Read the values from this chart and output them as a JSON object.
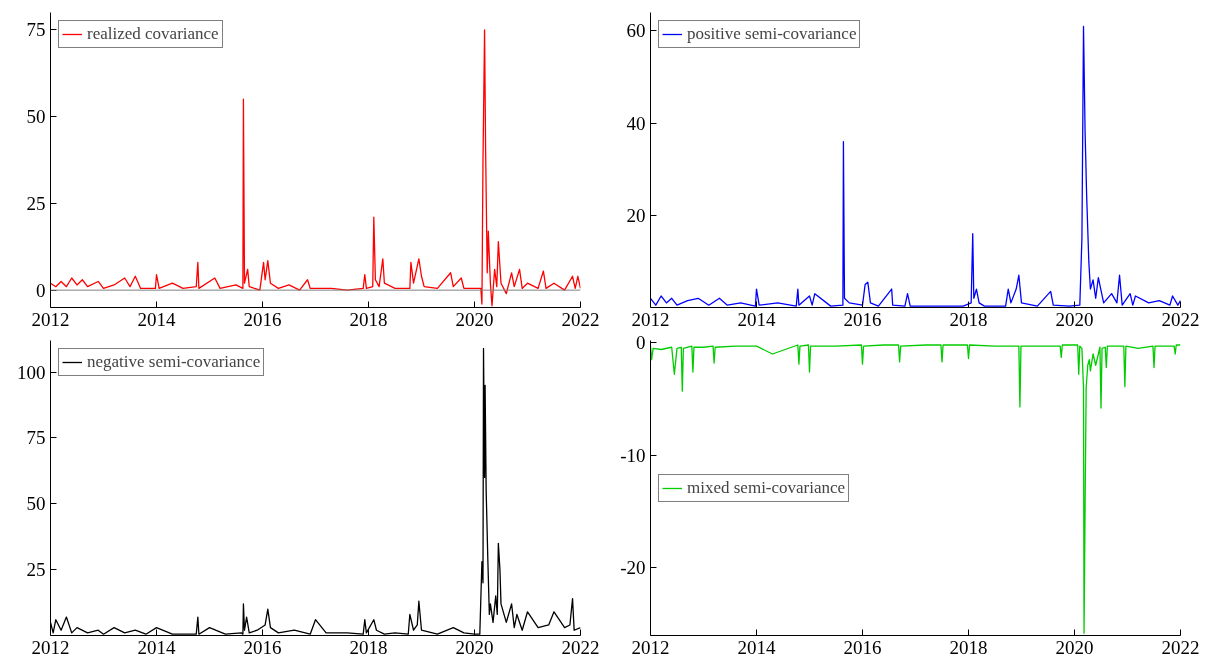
{
  "chart_data": [
    {
      "type": "line",
      "legend": "top left",
      "xlim": [
        2012,
        2022
      ],
      "xticks": [
        2012,
        2014,
        2016,
        2018,
        2020,
        2022
      ],
      "ylim": [
        -5,
        80
      ],
      "yticks": [
        0,
        25,
        50,
        75
      ],
      "ref_lines": [
        {
          "axis": "y",
          "value": 0,
          "color": "#808080"
        }
      ],
      "series": [
        {
          "name": "realized covariance",
          "color": "#ff0000",
          "x": [
            2012.0,
            2012.1,
            2012.2,
            2012.3,
            2012.4,
            2012.5,
            2012.6,
            2012.7,
            2012.9,
            2013.0,
            2013.2,
            2013.4,
            2013.5,
            2013.6,
            2013.7,
            2013.98,
            2014.0,
            2014.05,
            2014.3,
            2014.5,
            2014.75,
            2014.78,
            2014.8,
            2015.1,
            2015.2,
            2015.5,
            2015.63,
            2015.64,
            2015.66,
            2015.72,
            2015.75,
            2015.95,
            2016.02,
            2016.05,
            2016.1,
            2016.15,
            2016.3,
            2016.5,
            2016.7,
            2016.85,
            2016.9,
            2017.3,
            2017.6,
            2017.9,
            2017.93,
            2017.96,
            2018.08,
            2018.1,
            2018.13,
            2018.2,
            2018.27,
            2018.3,
            2018.5,
            2018.78,
            2018.8,
            2018.85,
            2018.95,
            2019.0,
            2019.05,
            2019.3,
            2019.55,
            2019.6,
            2019.75,
            2019.8,
            2020.0,
            2020.12,
            2020.14,
            2020.16,
            2020.19,
            2020.21,
            2020.24,
            2020.26,
            2020.3,
            2020.33,
            2020.38,
            2020.42,
            2020.45,
            2020.5,
            2020.6,
            2020.7,
            2020.75,
            2020.85,
            2020.9,
            2021.0,
            2021.2,
            2021.3,
            2021.35,
            2021.5,
            2021.7,
            2021.85,
            2021.9,
            2021.95,
            2022.0
          ],
          "values": [
            2,
            1,
            2.5,
            1,
            3.5,
            1.5,
            3,
            1,
            2.5,
            0.5,
            1.5,
            3.5,
            1,
            4,
            0.5,
            0.5,
            4.5,
            0.5,
            2,
            0.5,
            1,
            8,
            0.5,
            3.5,
            0.5,
            1.5,
            0.5,
            55,
            2,
            6,
            1,
            0,
            8,
            3,
            8.5,
            2,
            0.5,
            1.5,
            0,
            3,
            0.5,
            0.5,
            0,
            0.5,
            4.5,
            0.5,
            1,
            21,
            3,
            1,
            9,
            2,
            0.5,
            0.5,
            8,
            2,
            9,
            4,
            1,
            0.5,
            5,
            1,
            3.5,
            0.5,
            0.5,
            0.5,
            -4,
            37,
            75,
            40,
            5,
            17,
            2,
            -4.5,
            6,
            1,
            14,
            2,
            -1,
            5,
            1,
            6,
            0.5,
            2,
            0.5,
            5.5,
            0.5,
            2,
            0,
            4,
            0.5,
            4,
            0.5
          ]
        }
      ]
    },
    {
      "type": "line",
      "legend": "top left",
      "xlim": [
        2012,
        2022
      ],
      "xticks": [
        2012,
        2014,
        2016,
        2018,
        2020,
        2022
      ],
      "ylim": [
        0,
        64
      ],
      "yticks": [
        20,
        40,
        60
      ],
      "series": [
        {
          "name": "positive semi-covariance",
          "color": "#0000ff",
          "x": [
            2012.0,
            2012.1,
            2012.2,
            2012.3,
            2012.4,
            2012.5,
            2012.7,
            2012.9,
            2013.1,
            2013.3,
            2013.45,
            2013.7,
            2013.98,
            2014.0,
            2014.05,
            2014.4,
            2014.75,
            2014.78,
            2014.8,
            2015.0,
            2015.05,
            2015.1,
            2015.4,
            2015.63,
            2015.64,
            2015.66,
            2015.75,
            2016.0,
            2016.05,
            2016.1,
            2016.15,
            2016.3,
            2016.55,
            2016.57,
            2016.8,
            2016.85,
            2016.9,
            2017.4,
            2017.9,
            2018.05,
            2018.08,
            2018.1,
            2018.15,
            2018.2,
            2018.3,
            2018.7,
            2018.75,
            2018.8,
            2018.9,
            2018.95,
            2019.0,
            2019.3,
            2019.55,
            2019.6,
            2019.9,
            2020.1,
            2020.14,
            2020.17,
            2020.2,
            2020.23,
            2020.27,
            2020.3,
            2020.35,
            2020.4,
            2020.45,
            2020.55,
            2020.7,
            2020.8,
            2020.85,
            2020.9,
            2021.05,
            2021.1,
            2021.15,
            2021.4,
            2021.6,
            2021.8,
            2021.85,
            2021.95,
            2022.0
          ],
          "values": [
            2,
            0.5,
            2.5,
            1,
            2,
            0.5,
            1.5,
            2,
            0.5,
            2,
            0.5,
            1,
            0.3,
            4,
            0.5,
            1,
            0.3,
            4,
            0.5,
            2.5,
            0.5,
            3,
            0.3,
            0.5,
            36,
            2,
            1,
            0.5,
            5,
            5.5,
            1,
            0.3,
            4,
            0.5,
            0.3,
            3,
            0.3,
            0.3,
            0.3,
            1,
            16,
            2,
            4,
            1,
            0.3,
            0.3,
            4,
            1,
            4,
            7,
            1,
            0.3,
            3.5,
            0.5,
            0.3,
            0.5,
            15,
            61,
            38,
            24,
            10,
            4,
            6,
            2,
            6.5,
            1,
            3,
            1,
            7,
            0.5,
            3,
            0.5,
            2.5,
            1,
            1.5,
            0.5,
            2.5,
            0.5,
            1.5
          ]
        }
      ]
    },
    {
      "type": "line",
      "legend": "top left",
      "xlim": [
        2012,
        2022
      ],
      "xticks": [
        2012,
        2014,
        2016,
        2018,
        2020,
        2022
      ],
      "ylim": [
        0,
        112
      ],
      "yticks": [
        25,
        50,
        75,
        100
      ],
      "series": [
        {
          "name": "negative semi-covariance",
          "color": "#000000",
          "x": [
            2012.0,
            2012.05,
            2012.1,
            2012.2,
            2012.3,
            2012.4,
            2012.5,
            2012.7,
            2012.9,
            2013.0,
            2013.2,
            2013.4,
            2013.6,
            2013.8,
            2014.0,
            2014.3,
            2014.5,
            2014.75,
            2014.78,
            2014.8,
            2015.0,
            2015.3,
            2015.6,
            2015.63,
            2015.64,
            2015.66,
            2015.7,
            2015.75,
            2015.9,
            2016.05,
            2016.1,
            2016.15,
            2016.3,
            2016.6,
            2016.9,
            2017.0,
            2017.2,
            2017.6,
            2017.9,
            2017.93,
            2017.96,
            2018.1,
            2018.15,
            2018.3,
            2018.5,
            2018.75,
            2018.78,
            2018.85,
            2018.92,
            2018.95,
            2019.0,
            2019.3,
            2019.6,
            2019.8,
            2020.0,
            2020.1,
            2020.14,
            2020.16,
            2020.17,
            2020.19,
            2020.2,
            2020.22,
            2020.25,
            2020.28,
            2020.3,
            2020.35,
            2020.4,
            2020.43,
            2020.45,
            2020.48,
            2020.5,
            2020.6,
            2020.7,
            2020.75,
            2020.8,
            2020.9,
            2021.0,
            2021.2,
            2021.4,
            2021.5,
            2021.7,
            2021.8,
            2021.85,
            2021.88,
            2022.0
          ],
          "values": [
            5,
            1,
            6,
            2,
            7,
            1,
            3,
            1,
            2,
            0.5,
            3,
            1,
            2,
            0.5,
            3,
            0.5,
            0.5,
            0.5,
            7,
            0.5,
            3,
            0.5,
            1,
            0.5,
            12,
            2,
            7,
            1,
            2,
            4,
            10,
            3,
            1,
            2,
            0.5,
            6,
            1,
            1,
            0.5,
            6,
            1,
            6,
            2,
            0.5,
            1,
            0.5,
            8,
            2,
            4,
            13,
            2,
            0.5,
            3,
            1,
            0.5,
            0.5,
            28,
            20,
            109,
            60,
            95,
            55,
            30,
            8,
            12,
            5,
            15,
            8,
            35,
            25,
            12,
            5,
            12,
            3,
            8,
            2,
            9,
            3,
            4,
            9,
            3,
            4,
            14,
            2,
            3
          ]
        }
      ]
    },
    {
      "type": "line",
      "legend": "left",
      "xlim": [
        2012,
        2022
      ],
      "xticks": [
        2012,
        2014,
        2016,
        2018,
        2020,
        2022
      ],
      "ylim": [
        -26,
        0.2
      ],
      "yticks": [
        -20,
        -10,
        0
      ],
      "series": [
        {
          "name": "mixed semi-covariance",
          "color": "#00cc00",
          "x": [
            2012.0,
            2012.02,
            2012.05,
            2012.2,
            2012.4,
            2012.45,
            2012.5,
            2012.58,
            2012.6,
            2012.62,
            2012.78,
            2012.8,
            2012.82,
            2013.0,
            2013.18,
            2013.2,
            2013.22,
            2013.6,
            2014.0,
            2014.3,
            2014.78,
            2014.8,
            2014.82,
            2014.98,
            2015.0,
            2015.02,
            2015.5,
            2015.98,
            2016.0,
            2016.02,
            2016.4,
            2016.68,
            2016.7,
            2016.72,
            2017.2,
            2017.48,
            2017.5,
            2017.52,
            2017.98,
            2018.0,
            2018.02,
            2018.5,
            2018.95,
            2018.97,
            2018.99,
            2019.3,
            2019.73,
            2019.75,
            2019.77,
            2020.0,
            2020.06,
            2020.08,
            2020.1,
            2020.14,
            2020.17,
            2020.18,
            2020.2,
            2020.22,
            2020.25,
            2020.28,
            2020.3,
            2020.35,
            2020.4,
            2020.48,
            2020.5,
            2020.52,
            2020.58,
            2020.6,
            2020.62,
            2020.8,
            2020.93,
            2020.95,
            2020.97,
            2021.2,
            2021.48,
            2021.5,
            2021.52,
            2021.7,
            2021.88,
            2021.9,
            2021.92,
            2022.0
          ],
          "values": [
            -0.3,
            -1.5,
            -0.5,
            -0.6,
            -0.4,
            -2.8,
            -0.5,
            -0.4,
            -4.3,
            -0.5,
            -0.3,
            -2.6,
            -0.4,
            -0.4,
            -0.3,
            -1.8,
            -0.4,
            -0.3,
            -0.3,
            -1,
            -0.2,
            -1.9,
            -0.3,
            -0.2,
            -2.6,
            -0.3,
            -0.3,
            -0.2,
            -1.9,
            -0.3,
            -0.2,
            -0.2,
            -1.7,
            -0.3,
            -0.2,
            -0.2,
            -1.7,
            -0.2,
            -0.2,
            -1.4,
            -0.2,
            -0.3,
            -0.3,
            -5.7,
            -0.3,
            -0.3,
            -0.3,
            -1.3,
            -0.2,
            -0.2,
            -0.2,
            -2.8,
            -0.3,
            -0.5,
            -4,
            -25.8,
            -14.5,
            -4,
            -2,
            -1.5,
            -2.5,
            -1,
            -2,
            -0.4,
            -5.8,
            -0.5,
            -0.4,
            -2.2,
            -0.3,
            -0.3,
            -0.3,
            -3.9,
            -0.3,
            -0.5,
            -0.3,
            -2.2,
            -0.3,
            -0.3,
            -0.3,
            -1,
            -0.2,
            -0.2
          ]
        }
      ]
    }
  ]
}
